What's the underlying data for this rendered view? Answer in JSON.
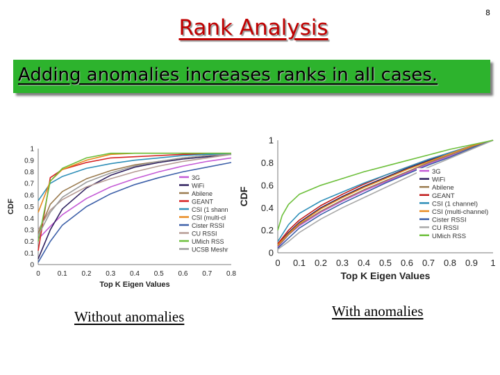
{
  "page_number": "8",
  "title": "Rank Analysis",
  "banner": "Adding anomalies increases ranks in all cases.",
  "captions": {
    "left": "Without anomalies",
    "right": "With anomalies"
  },
  "chart_data": [
    {
      "type": "line",
      "xlabel": "Top K Eigen Values",
      "ylabel": "CDF",
      "xlim": [
        0,
        0.8
      ],
      "ylim": [
        0,
        1
      ],
      "x_ticks": [
        "0",
        "0.1",
        "0.2",
        "0.3",
        "0.4",
        "0.5",
        "0.6",
        "0.7",
        "0.8"
      ],
      "y_ticks": [
        "0",
        "0.1",
        "0.2",
        "0.3",
        "0.4",
        "0.5",
        "0.6",
        "0.7",
        "0.8",
        "0.9",
        "1"
      ],
      "legend_position": "right",
      "series": [
        {
          "name": "3G",
          "color": "#c45ad6",
          "x": [
            0,
            0.05,
            0.1,
            0.2,
            0.3,
            0.4,
            0.5,
            0.6,
            0.7,
            0.8
          ],
          "y": [
            0.22,
            0.33,
            0.43,
            0.57,
            0.67,
            0.74,
            0.8,
            0.85,
            0.89,
            0.92
          ]
        },
        {
          "name": "WiFi",
          "color": "#2e1f5e",
          "x": [
            0,
            0.05,
            0.1,
            0.2,
            0.3,
            0.4,
            0.5,
            0.6,
            0.7,
            0.8
          ],
          "y": [
            0.05,
            0.3,
            0.48,
            0.66,
            0.77,
            0.84,
            0.88,
            0.91,
            0.93,
            0.95
          ]
        },
        {
          "name": "Abilene",
          "color": "#9a7b4f",
          "x": [
            0,
            0.05,
            0.1,
            0.2,
            0.3,
            0.4,
            0.5,
            0.6,
            0.7,
            0.8
          ],
          "y": [
            0.27,
            0.52,
            0.63,
            0.74,
            0.81,
            0.86,
            0.89,
            0.92,
            0.94,
            0.95
          ]
        },
        {
          "name": "GEANT",
          "color": "#d62020",
          "x": [
            0,
            0.05,
            0.1,
            0.2,
            0.3,
            0.4,
            0.5,
            0.6,
            0.7,
            0.8
          ],
          "y": [
            0.12,
            0.75,
            0.82,
            0.88,
            0.92,
            0.93,
            0.94,
            0.95,
            0.95,
            0.95
          ]
        },
        {
          "name": "CSI (1 shann",
          "color": "#2f8fb8",
          "x": [
            0,
            0.05,
            0.1,
            0.2,
            0.3,
            0.4,
            0.5,
            0.6,
            0.7,
            0.8
          ],
          "y": [
            0.55,
            0.7,
            0.76,
            0.83,
            0.87,
            0.9,
            0.92,
            0.94,
            0.95,
            0.95
          ]
        },
        {
          "name": "CSI (multi-cł",
          "color": "#e8891e",
          "x": [
            0,
            0.05,
            0.1,
            0.2,
            0.3,
            0.4,
            0.5,
            0.6,
            0.7,
            0.8
          ],
          "y": [
            0.45,
            0.72,
            0.82,
            0.9,
            0.95,
            0.96,
            0.96,
            0.96,
            0.96,
            0.96
          ]
        },
        {
          "name": "Cister RSSI",
          "color": "#3c5fa8",
          "x": [
            0,
            0.05,
            0.1,
            0.2,
            0.3,
            0.4,
            0.5,
            0.6,
            0.7,
            0.8
          ],
          "y": [
            0.02,
            0.2,
            0.34,
            0.5,
            0.61,
            0.69,
            0.75,
            0.8,
            0.84,
            0.88
          ]
        },
        {
          "name": "CU RSSI",
          "color": "#b59a93",
          "x": [
            0,
            0.05,
            0.1,
            0.2,
            0.3,
            0.4,
            0.5,
            0.6,
            0.7,
            0.8
          ],
          "y": [
            0.3,
            0.47,
            0.56,
            0.67,
            0.74,
            0.8,
            0.85,
            0.89,
            0.92,
            0.95
          ]
        },
        {
          "name": "UMich RSS",
          "color": "#6cbf3a",
          "x": [
            0,
            0.05,
            0.1,
            0.2,
            0.3,
            0.4,
            0.5,
            0.6,
            0.7,
            0.8
          ],
          "y": [
            0.2,
            0.72,
            0.83,
            0.92,
            0.96,
            0.96,
            0.96,
            0.96,
            0.96,
            0.96
          ]
        },
        {
          "name": "UCSB Meshr",
          "color": "#9a9a9a",
          "x": [
            0,
            0.05,
            0.1,
            0.2,
            0.3,
            0.4,
            0.5,
            0.6,
            0.7,
            0.8
          ],
          "y": [
            0.25,
            0.45,
            0.58,
            0.71,
            0.79,
            0.85,
            0.89,
            0.92,
            0.94,
            0.95
          ]
        }
      ]
    },
    {
      "type": "line",
      "xlabel": "Top K Eigen Values",
      "ylabel": "CDF",
      "xlim": [
        0,
        1
      ],
      "ylim": [
        0,
        1
      ],
      "x_ticks": [
        "0",
        "0.1",
        "0.2",
        "0.3",
        "0.4",
        "0.5",
        "0.6",
        "0.7",
        "0.8",
        "0.9",
        "1"
      ],
      "y_ticks": [
        "0",
        "0.2",
        "0.4",
        "0.6",
        "0.8",
        "1"
      ],
      "legend_position": "right",
      "series": [
        {
          "name": "3G",
          "color": "#c45ad6",
          "x": [
            0,
            0.05,
            0.1,
            0.2,
            0.3,
            0.4,
            0.5,
            0.6,
            0.7,
            0.8,
            0.9,
            1
          ],
          "y": [
            0.05,
            0.16,
            0.24,
            0.36,
            0.46,
            0.55,
            0.63,
            0.71,
            0.79,
            0.86,
            0.93,
            1
          ]
        },
        {
          "name": "WiFi",
          "color": "#2e1f5e",
          "x": [
            0,
            0.05,
            0.1,
            0.2,
            0.3,
            0.4,
            0.5,
            0.6,
            0.7,
            0.8,
            0.9,
            1
          ],
          "y": [
            0.07,
            0.18,
            0.27,
            0.4,
            0.5,
            0.59,
            0.67,
            0.75,
            0.82,
            0.89,
            0.95,
            1
          ]
        },
        {
          "name": "Abilene",
          "color": "#9a7b4f",
          "x": [
            0,
            0.05,
            0.1,
            0.2,
            0.3,
            0.4,
            0.5,
            0.6,
            0.7,
            0.8,
            0.9,
            1
          ],
          "y": [
            0.06,
            0.16,
            0.25,
            0.37,
            0.47,
            0.56,
            0.64,
            0.72,
            0.8,
            0.87,
            0.94,
            1
          ]
        },
        {
          "name": "GEANT",
          "color": "#c01818",
          "x": [
            0,
            0.05,
            0.1,
            0.2,
            0.3,
            0.4,
            0.5,
            0.6,
            0.7,
            0.8,
            0.9,
            1
          ],
          "y": [
            0.08,
            0.2,
            0.29,
            0.42,
            0.52,
            0.61,
            0.69,
            0.76,
            0.83,
            0.89,
            0.95,
            1
          ]
        },
        {
          "name": "CSI (1 channel)",
          "color": "#2f8fb8",
          "x": [
            0,
            0.05,
            0.1,
            0.2,
            0.3,
            0.4,
            0.5,
            0.6,
            0.7,
            0.8,
            0.9,
            1
          ],
          "y": [
            0.1,
            0.25,
            0.35,
            0.46,
            0.54,
            0.62,
            0.69,
            0.76,
            0.83,
            0.89,
            0.95,
            1
          ]
        },
        {
          "name": "CSI (multi-channel)",
          "color": "#e8891e",
          "x": [
            0,
            0.05,
            0.1,
            0.2,
            0.3,
            0.4,
            0.5,
            0.6,
            0.7,
            0.8,
            0.9,
            1
          ],
          "y": [
            0.07,
            0.17,
            0.26,
            0.39,
            0.49,
            0.58,
            0.66,
            0.74,
            0.81,
            0.88,
            0.95,
            1
          ]
        },
        {
          "name": "Cister RSSI",
          "color": "#3c5fa8",
          "x": [
            0,
            0.05,
            0.1,
            0.2,
            0.3,
            0.4,
            0.5,
            0.6,
            0.7,
            0.8,
            0.9,
            1
          ],
          "y": [
            0.04,
            0.13,
            0.22,
            0.34,
            0.44,
            0.53,
            0.62,
            0.7,
            0.78,
            0.85,
            0.93,
            1
          ]
        },
        {
          "name": "CU RSSI",
          "color": "#a8a8a8",
          "x": [
            0,
            0.05,
            0.1,
            0.2,
            0.3,
            0.4,
            0.5,
            0.6,
            0.7,
            0.8,
            0.9,
            1
          ],
          "y": [
            0.03,
            0.1,
            0.18,
            0.3,
            0.4,
            0.49,
            0.58,
            0.67,
            0.76,
            0.84,
            0.92,
            1
          ]
        },
        {
          "name": "UMich RSS",
          "color": "#6cbf3a",
          "x": [
            0,
            0.02,
            0.05,
            0.1,
            0.2,
            0.3,
            0.4,
            0.5,
            0.6,
            0.7,
            0.8,
            0.9,
            1
          ],
          "y": [
            0.2,
            0.33,
            0.43,
            0.52,
            0.6,
            0.66,
            0.72,
            0.77,
            0.82,
            0.87,
            0.92,
            0.96,
            1
          ]
        }
      ]
    }
  ]
}
